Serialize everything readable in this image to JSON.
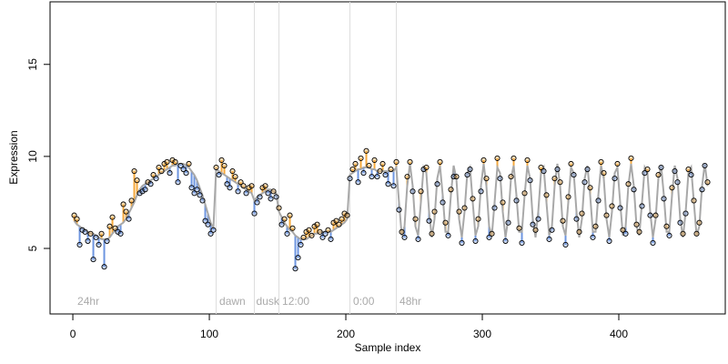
{
  "chart_data": {
    "type": "scatter",
    "xlabel": "Sample index",
    "ylabel": "Expression",
    "xlim": [
      -16.7,
      478
    ],
    "ylim": [
      1.44,
      18.4
    ],
    "xticks": [
      0,
      100,
      200,
      300,
      400
    ],
    "yticks": [
      5,
      10,
      15
    ],
    "vlines": [
      105,
      133,
      151,
      203,
      237
    ],
    "vline_color": "#dddddd",
    "annotations": [
      {
        "x": 2,
        "label": "24hr"
      },
      {
        "x": 106,
        "label": "dawn"
      },
      {
        "x": 133,
        "label": "dusk"
      },
      {
        "x": 152,
        "label": "12:00"
      },
      {
        "x": 204,
        "label": "0:00"
      },
      {
        "x": 238,
        "label": "48hr"
      }
    ],
    "annotation_y": 2.1,
    "above_color": "#f5a83c",
    "below_color": "#6d95e0",
    "x": [
      1,
      3,
      5,
      7,
      9,
      11,
      13,
      15,
      17,
      19,
      21,
      23,
      25,
      27,
      29,
      31,
      33,
      35,
      37,
      39,
      41,
      43,
      45,
      47,
      49,
      51,
      53,
      55,
      57,
      59,
      61,
      63,
      65,
      67,
      69,
      71,
      73,
      75,
      77,
      79,
      81,
      83,
      85,
      87,
      89,
      91,
      93,
      95,
      97,
      99,
      101,
      103,
      105,
      107,
      109,
      111,
      113,
      115,
      117,
      119,
      121,
      123,
      125,
      127,
      129,
      131,
      133,
      135,
      137,
      139,
      141,
      143,
      145,
      147,
      149,
      151,
      153,
      155,
      157,
      159,
      161,
      163,
      165,
      167,
      169,
      171,
      173,
      175,
      177,
      179,
      181,
      183,
      185,
      187,
      189,
      191,
      193,
      195,
      197,
      199,
      201,
      203,
      205,
      207,
      209,
      211,
      213,
      215,
      217,
      219,
      221,
      223,
      225,
      227,
      229,
      231,
      233,
      235,
      237,
      239,
      241,
      243,
      245,
      247,
      249,
      251,
      253,
      255,
      257,
      259,
      261,
      263,
      265,
      267,
      269,
      271,
      273,
      275,
      277,
      279,
      281,
      283,
      285,
      287,
      289,
      291,
      293,
      295,
      297,
      299,
      301,
      303,
      305,
      307,
      309,
      311,
      313,
      315,
      317,
      319,
      321,
      323,
      325,
      327,
      329,
      331,
      333,
      335,
      337,
      339,
      341,
      343,
      345,
      347,
      349,
      351,
      353,
      355,
      357,
      359,
      361,
      363,
      365,
      367,
      369,
      371,
      373,
      375,
      377,
      379,
      381,
      383,
      385,
      387,
      389,
      391,
      393,
      395,
      397,
      399,
      401,
      403,
      405,
      407,
      409,
      411,
      413,
      415,
      417,
      419,
      421,
      423,
      425,
      427,
      429,
      431,
      433,
      435,
      437,
      439,
      441,
      443,
      445,
      447,
      449,
      451,
      453,
      455,
      457,
      459,
      461,
      463,
      465
    ],
    "series": [
      {
        "color": "#000000",
        "values": [
          6.8,
          6.6,
          5.2,
          6.0,
          5.9,
          5.4,
          5.8,
          4.4,
          5.6,
          5.2,
          5.8,
          4.0,
          5.4,
          6.2,
          6.7,
          6.1,
          5.9,
          5.8,
          7.4,
          7.0,
          6.6,
          7.6,
          9.2,
          8.7,
          8.0,
          8.1,
          8.2,
          8.6,
          8.5,
          9.0,
          8.8,
          9.4,
          9.2,
          9.6,
          9.7,
          9.1,
          9.8,
          9.7,
          8.6,
          9.5,
          9.3,
          9.1,
          9.6,
          8.3,
          8.0,
          8.2,
          7.9,
          7.6,
          6.5,
          6.3,
          5.8,
          6.0,
          9.4,
          9.0,
          9.8,
          9.5,
          8.5,
          8.3,
          9.2,
          8.9,
          8.1,
          8.6,
          8.4,
          8.0,
          8.3,
          8.4,
          6.9,
          7.5,
          7.8,
          8.3,
          8.4,
          8.0,
          7.7,
          8.1,
          7.8,
          7.2,
          6.3,
          6.6,
          5.8,
          6.8,
          6.1,
          3.9,
          4.5,
          5.2,
          5.6,
          5.9,
          6.0,
          5.7,
          6.2,
          6.3,
          5.9,
          5.6,
          5.8,
          6.0,
          5.5,
          6.4,
          6.5,
          6.3,
          6.6,
          6.9,
          6.8,
          8.8,
          9.3,
          9.6,
          8.6,
          9.9,
          9.1,
          10.3,
          9.5,
          8.9,
          9.8,
          8.9,
          9.2,
          9.6,
          9.0,
          8.5,
          9.3,
          8.4,
          9.7,
          7.1,
          5.9,
          5.6,
          8.9,
          9.7,
          8.1,
          6.6,
          5.5,
          8.1,
          9.3,
          9.4,
          6.5,
          5.8,
          7.0,
          8.5,
          9.7,
          7.5,
          6.4,
          5.7,
          8.2,
          8.9,
          8.9,
          7.0,
          5.3,
          7.2,
          9.0,
          9.3,
          7.7,
          5.4,
          6.6,
          8.1,
          9.8,
          8.8,
          5.6,
          5.8,
          7.2,
          9.9,
          8.8,
          7.5,
          5.4,
          6.4,
          8.9,
          9.9,
          7.6,
          6.1,
          5.3,
          8.0,
          9.8,
          8.7,
          6.3,
          6.0,
          6.6,
          9.4,
          9.2,
          7.9,
          5.5,
          6.0,
          8.8,
          9.3,
          8.6,
          6.5,
          5.2,
          7.8,
          9.6,
          9.0,
          6.6,
          5.9,
          6.9,
          8.6,
          9.3,
          8.3,
          5.6,
          6.2,
          7.6,
          9.7,
          9.1,
          6.8,
          5.4,
          7.3,
          8.8,
          9.6,
          7.2,
          6.0,
          5.8,
          8.5,
          9.9,
          8.2,
          6.3,
          5.9,
          7.3,
          9.1,
          9.3,
          6.8,
          5.3,
          6.8,
          9.0,
          9.4,
          7.7,
          6.2,
          5.7,
          8.3,
          9.2,
          8.6,
          6.4,
          5.8,
          6.9,
          9.3,
          9.0,
          7.6,
          5.8,
          6.4,
          8.2,
          9.5,
          8.6
        ]
      },
      {
        "color": "#a8a8a8",
        "values": [
          6.5,
          6.3,
          6.2,
          6.1,
          6.0,
          5.9,
          5.8,
          5.8,
          5.7,
          5.6,
          5.5,
          5.5,
          5.5,
          5.6,
          5.8,
          6.0,
          6.2,
          6.3,
          6.4,
          6.6,
          6.9,
          7.2,
          7.5,
          7.9,
          8.2,
          8.4,
          8.5,
          8.6,
          8.7,
          8.8,
          8.9,
          9.0,
          9.1,
          9.2,
          9.3,
          9.4,
          9.5,
          9.5,
          9.6,
          9.6,
          9.6,
          9.5,
          9.4,
          9.2,
          9.0,
          8.7,
          8.3,
          7.9,
          7.4,
          6.9,
          6.4,
          6.1,
          9.3,
          9.2,
          9.1,
          9.0,
          8.9,
          8.8,
          8.7,
          8.6,
          8.5,
          8.4,
          8.3,
          8.2,
          8.1,
          8.0,
          7.6,
          7.8,
          7.9,
          8.0,
          8.1,
          8.2,
          8.2,
          8.1,
          8.0,
          7.0,
          6.7,
          6.4,
          6.2,
          6.0,
          5.9,
          5.7,
          5.6,
          5.5,
          5.5,
          5.5,
          5.6,
          5.7,
          5.8,
          5.8,
          5.9,
          5.9,
          5.9,
          5.9,
          5.9,
          6.0,
          6.1,
          6.2,
          6.3,
          6.4,
          6.6,
          9.0,
          9.1,
          9.2,
          9.3,
          9.3,
          9.4,
          9.4,
          9.4,
          9.3,
          9.3,
          9.2,
          9.2,
          9.2,
          9.2,
          9.2,
          9.2,
          9.2,
          9.4,
          7.5,
          5.7,
          6.2,
          8.4,
          9.6,
          8.4,
          6.2,
          5.7,
          7.5,
          9.4,
          9.1,
          7.0,
          5.6,
          6.6,
          8.8,
          9.5,
          7.9,
          5.9,
          5.9,
          7.9,
          9.5,
          8.8,
          6.6,
          5.6,
          7.0,
          9.1,
          9.4,
          7.5,
          5.7,
          6.2,
          8.4,
          9.6,
          8.4,
          6.2,
          5.7,
          7.5,
          9.4,
          9.1,
          7.0,
          5.6,
          6.6,
          8.8,
          9.5,
          7.9,
          5.9,
          5.9,
          7.9,
          9.5,
          8.8,
          6.6,
          5.6,
          7.0,
          9.1,
          9.4,
          7.5,
          5.7,
          6.2,
          8.4,
          9.6,
          8.4,
          6.2,
          5.7,
          7.5,
          9.4,
          9.1,
          7.0,
          5.6,
          6.6,
          8.8,
          9.5,
          7.9,
          5.9,
          5.9,
          7.9,
          9.5,
          8.8,
          6.6,
          5.6,
          7.0,
          9.1,
          9.4,
          7.5,
          5.7,
          6.2,
          8.4,
          9.6,
          8.4,
          6.2,
          5.7,
          7.5,
          9.4,
          9.1,
          7.0,
          5.6,
          6.6,
          8.8,
          9.5,
          7.9,
          5.9,
          5.9,
          7.9,
          9.5,
          8.8,
          6.6,
          5.6,
          7.0,
          9.1,
          9.4,
          7.5,
          5.7,
          6.2,
          8.4,
          9.6,
          8.4
        ]
      }
    ]
  }
}
